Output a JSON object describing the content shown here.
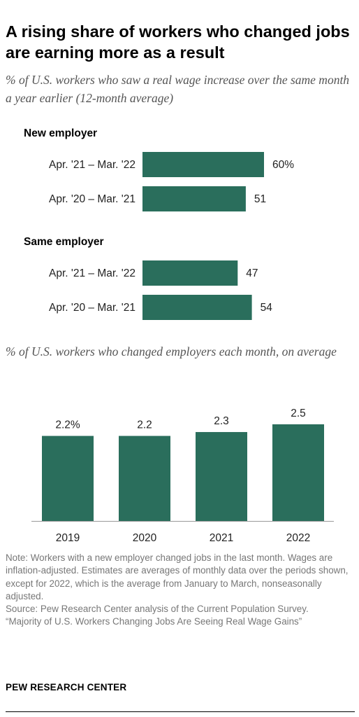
{
  "title": "A rising share of workers who changed jobs are earning more as a result",
  "notes": {
    "note": "Note: Workers with a new employer changed jobs in the last month. Wages are inflation-adjusted. Estimates are averages of monthly data over the periods shown, except for 2022, which is the average from January to March, nonseasonally adjusted.",
    "source": "Source: Pew Research Center analysis of the Current Population Survey.",
    "report": "“Majority of U.S. Workers Changing Jobs Are Seeing Real Wage Gains”"
  },
  "brand": "PEW RESEARCH CENTER",
  "colors": {
    "bar": "#2a6e5c",
    "axis": "#999999"
  },
  "chart_data": [
    {
      "type": "bar",
      "orientation": "horizontal",
      "title": "% of U.S. workers who saw a real wage increase over the same month a year earlier (12-month average)",
      "groups": [
        {
          "name": "New employer",
          "bars": [
            {
              "label": "Apr. '21 – Mar. '22",
              "value": 60,
              "value_label": "60%"
            },
            {
              "label": "Apr. '20 – Mar. '21",
              "value": 51,
              "value_label": "51"
            }
          ]
        },
        {
          "name": "Same employer",
          "bars": [
            {
              "label": "Apr. '21 – Mar. '22",
              "value": 47,
              "value_label": "47"
            },
            {
              "label": "Apr. '20 – Mar. '21",
              "value": 54,
              "value_label": "54"
            }
          ]
        }
      ],
      "xlim": [
        0,
        100
      ]
    },
    {
      "type": "bar",
      "orientation": "vertical",
      "title": "% of U.S. workers who changed employers each month, on average",
      "categories": [
        "2019",
        "2020",
        "2021",
        "2022"
      ],
      "values": [
        2.2,
        2.2,
        2.3,
        2.5
      ],
      "value_labels": [
        "2.2%",
        "2.2",
        "2.3",
        "2.5"
      ],
      "ylim": [
        0,
        2.5
      ]
    }
  ]
}
